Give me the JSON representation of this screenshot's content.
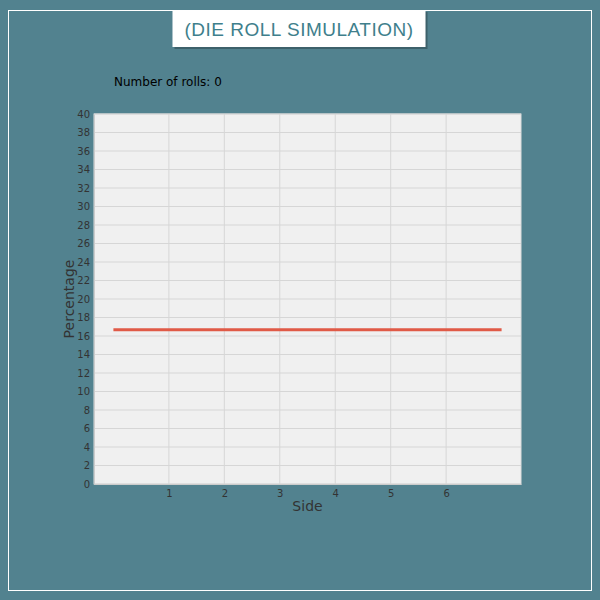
{
  "chart_data": {
    "type": "line",
    "title": "(DIE ROLL SIMULATION)",
    "subtitle": "Number of rolls: 0",
    "x_label": "Side",
    "y_label": "Percentage",
    "xlim": [
      -0.35,
      7.35
    ],
    "xticks": [
      1,
      2,
      3,
      4,
      5,
      6
    ],
    "ylim": [
      0,
      40
    ],
    "yticks": [
      0,
      2,
      4,
      6,
      8,
      10,
      12,
      14,
      16,
      18,
      20,
      22,
      24,
      26,
      28,
      30,
      32,
      34,
      36,
      38,
      40
    ],
    "grid": true,
    "series": [
      {
        "x": [
          0,
          7
        ],
        "values": [
          16.67,
          16.67
        ],
        "color": "#e05a47"
      }
    ]
  }
}
